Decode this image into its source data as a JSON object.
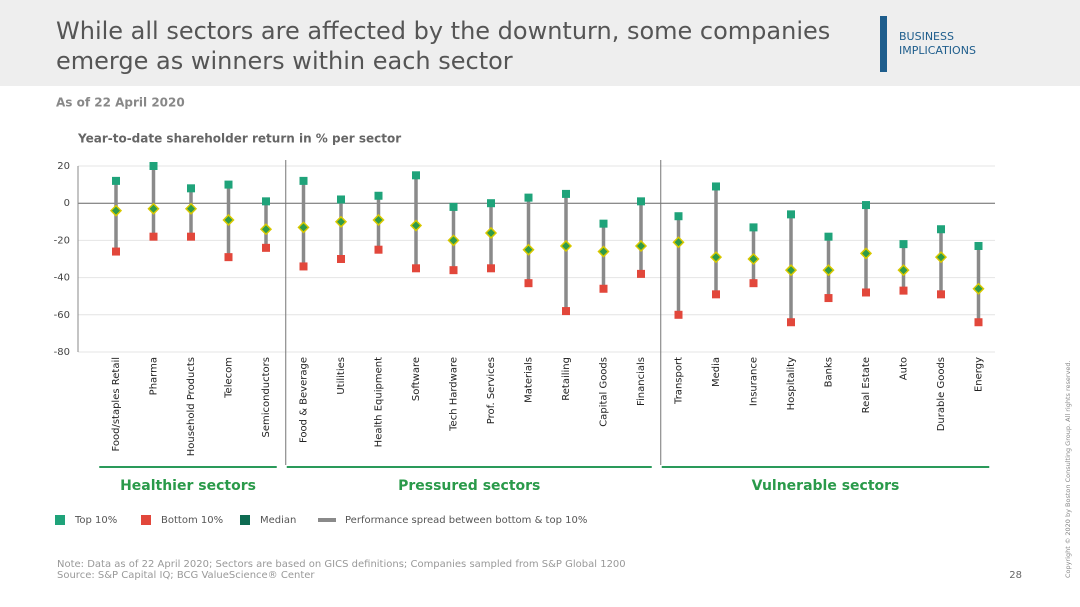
{
  "header": {
    "title_lines": [
      "While all sectors are affected by the downturn, some companies",
      "emerge as winners within each sector"
    ],
    "section": [
      "BUSINESS",
      "IMPLICATIONS"
    ]
  },
  "as_of": "As of 22 April 2020",
  "chart_data": {
    "type": "range",
    "title": "Year-to-date shareholder return in % per sector",
    "categories": [
      "Food/staples Retail",
      "Pharma",
      "Household Products",
      "Telecom",
      "Semiconductors",
      "Food & Beverage",
      "Utilities",
      "Health Equipment",
      "Software",
      "Tech Hardware",
      "Prof. Services",
      "Materials",
      "Retailing",
      "Capital Goods",
      "Financials",
      "Transport",
      "Media",
      "Insurance",
      "Hospitality",
      "Banks",
      "Real Estate",
      "Auto",
      "Durable Goods",
      "Energy"
    ],
    "series": [
      {
        "name": "Top 10%",
        "color": "#1fa37a",
        "values": [
          12,
          20,
          8,
          10,
          1,
          12,
          2,
          4,
          15,
          -2,
          0,
          3,
          5,
          -11,
          1,
          -7,
          9,
          -13,
          -6,
          -18,
          -1,
          -22,
          -14,
          -23
        ]
      },
      {
        "name": "Bottom 10%",
        "color": "#e2473b",
        "values": [
          -26,
          -18,
          -18,
          -29,
          -24,
          -34,
          -30,
          -25,
          -35,
          -36,
          -35,
          -43,
          -58,
          -46,
          -38,
          -60,
          -49,
          -43,
          -64,
          -51,
          -48,
          -47,
          -49,
          -64
        ]
      },
      {
        "name": "Median",
        "color": "#0e6b52",
        "values": [
          -4,
          -3,
          -3,
          -9,
          -14,
          -13,
          -10,
          -9,
          -12,
          -20,
          -16,
          -25,
          -23,
          -26,
          -23,
          -21,
          -29,
          -30,
          -36,
          -36,
          -27,
          -36,
          -29,
          -46
        ]
      }
    ],
    "spread": {
      "name": "Performance spread between bottom & top 10%",
      "color": "#8a8a8a"
    },
    "groups": [
      {
        "name": "Healthier sectors",
        "from": 0,
        "to": 4
      },
      {
        "name": "Pressured sectors",
        "from": 5,
        "to": 14
      },
      {
        "name": "Vulnerable sectors",
        "from": 15,
        "to": 23
      }
    ],
    "ylim": [
      -80,
      20
    ],
    "yticks": [
      -80,
      -60,
      -40,
      -20,
      0,
      20
    ],
    "grid": true
  },
  "footer": {
    "note": "Note: Data as of 22 April 2020; Sectors are based on GICS definitions; Companies sampled from S&P Global 1200",
    "source": "Source: S&P Capital IQ; BCG ValueScience® Center",
    "page": "28",
    "copyright": "Copyright © 2020 by Boston Consulting Group. All rights reserved."
  }
}
